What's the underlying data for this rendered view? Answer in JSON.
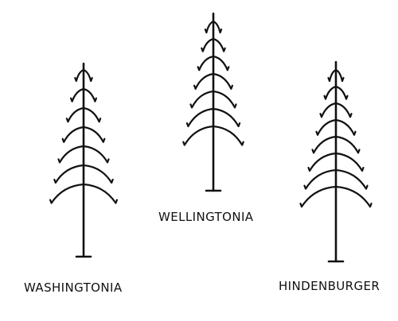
{
  "trees": [
    {
      "id": "washingtonia",
      "label": "WASHINGTONIA"
    },
    {
      "id": "wellingtonia",
      "label": "WELLINGTONIA"
    },
    {
      "id": "hindenburger",
      "label": "HINDENBURGER"
    }
  ]
}
